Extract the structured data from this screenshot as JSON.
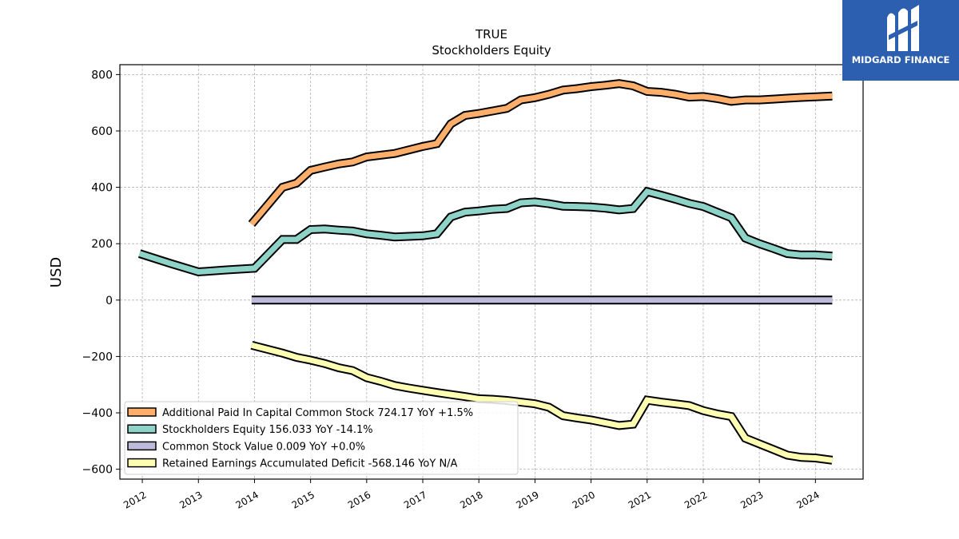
{
  "brand": {
    "name": "MIDGARD FINANCE",
    "color": "#2d5fb0",
    "icon": "midgard-m-logo-icon"
  },
  "chart_data": {
    "type": "line",
    "title": "TRUE",
    "subtitle": "Stockholders  Equity",
    "ylabel": "USD",
    "xlabel": "",
    "xlim": [
      2011.6,
      2024.85
    ],
    "ylim": [
      -635,
      835
    ],
    "yticks": [
      800,
      600,
      400,
      200,
      0,
      -200,
      -400,
      -600
    ],
    "ytick_labels": [
      "800",
      "600",
      "400",
      "200",
      "0",
      "−200",
      "−400",
      "−600"
    ],
    "xticks": [
      2012,
      2013,
      2014,
      2015,
      2016,
      2017,
      2018,
      2019,
      2020,
      2021,
      2022,
      2023,
      2024
    ],
    "xtick_labels": [
      "2012",
      "2013",
      "2014",
      "2015",
      "2016",
      "2017",
      "2018",
      "2019",
      "2020",
      "2021",
      "2022",
      "2023",
      "2024"
    ],
    "grid": true,
    "legend_position": "lower-left",
    "series": [
      {
        "name": "Additional Paid In Capital Common Stock  724.17 YoY +1.5%",
        "color": "#fdae6b",
        "x": [
          2013.95,
          2014.5,
          2014.75,
          2015.0,
          2015.25,
          2015.5,
          2015.75,
          2016.0,
          2016.5,
          2017.0,
          2017.25,
          2017.5,
          2017.75,
          2018.0,
          2018.25,
          2018.5,
          2018.75,
          2019.0,
          2019.25,
          2019.5,
          2019.75,
          2020.0,
          2020.25,
          2020.5,
          2020.75,
          2021.0,
          2021.25,
          2021.5,
          2021.75,
          2022.0,
          2022.25,
          2022.5,
          2022.75,
          2023.0,
          2023.25,
          2023.5,
          2023.75,
          2024.0,
          2024.3
        ],
        "values": [
          270,
          400,
          415,
          460,
          472,
          483,
          490,
          508,
          520,
          545,
          555,
          625,
          655,
          662,
          671,
          680,
          710,
          718,
          730,
          745,
          750,
          757,
          762,
          768,
          760,
          740,
          737,
          730,
          720,
          722,
          715,
          705,
          710,
          710,
          713,
          716,
          719,
          721,
          724
        ]
      },
      {
        "name": "Stockholders Equity  156.033 YoY -14.1%",
        "color": "#8dd3c7",
        "x": [
          2011.95,
          2012.5,
          2013.0,
          2013.5,
          2014.0,
          2014.5,
          2014.75,
          2015.0,
          2015.25,
          2015.5,
          2015.75,
          2016.0,
          2016.25,
          2016.5,
          2016.75,
          2017.0,
          2017.25,
          2017.5,
          2017.75,
          2018.0,
          2018.25,
          2018.5,
          2018.75,
          2019.0,
          2019.25,
          2019.5,
          2019.75,
          2020.0,
          2020.25,
          2020.5,
          2020.75,
          2021.0,
          2021.25,
          2021.5,
          2021.75,
          2022.0,
          2022.25,
          2022.5,
          2022.75,
          2023.0,
          2023.25,
          2023.5,
          2023.75,
          2024.0,
          2024.3
        ],
        "values": [
          165,
          130,
          100,
          107,
          113,
          215,
          215,
          250,
          252,
          248,
          245,
          235,
          230,
          224,
          226,
          228,
          235,
          295,
          312,
          316,
          322,
          325,
          345,
          348,
          342,
          333,
          332,
          330,
          326,
          320,
          325,
          385,
          372,
          358,
          343,
          332,
          312,
          292,
          220,
          200,
          183,
          165,
          160,
          160,
          156
        ]
      },
      {
        "name": "Common Stock Value  0.009 YoY +0.0%",
        "color": "#bebada",
        "x": [
          2013.95,
          2024.3
        ],
        "values": [
          0.009,
          0.009
        ]
      },
      {
        "name": "Retained Earnings Accumulated Deficit  -568.146 YoY N/A",
        "color": "#ffffb3",
        "x": [
          2013.95,
          2014.5,
          2014.75,
          2015.0,
          2015.25,
          2015.5,
          2015.75,
          2016.0,
          2016.25,
          2016.5,
          2016.75,
          2017.0,
          2017.25,
          2017.5,
          2017.75,
          2018.0,
          2018.25,
          2018.5,
          2018.75,
          2019.0,
          2019.25,
          2019.5,
          2019.75,
          2020.0,
          2020.25,
          2020.5,
          2020.75,
          2021.0,
          2021.25,
          2021.5,
          2021.75,
          2022.0,
          2022.25,
          2022.5,
          2022.75,
          2023.0,
          2023.25,
          2023.5,
          2023.75,
          2024.0,
          2024.3
        ],
        "values": [
          -160,
          -188,
          -203,
          -213,
          -225,
          -240,
          -250,
          -275,
          -288,
          -303,
          -312,
          -320,
          -328,
          -335,
          -342,
          -350,
          -352,
          -356,
          -362,
          -368,
          -380,
          -410,
          -418,
          -425,
          -435,
          -445,
          -440,
          -355,
          -362,
          -368,
          -374,
          -392,
          -404,
          -413,
          -490,
          -510,
          -530,
          -550,
          -558,
          -560,
          -568
        ]
      }
    ]
  }
}
